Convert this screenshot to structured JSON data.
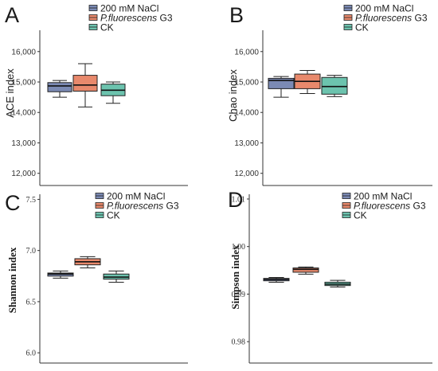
{
  "colors": {
    "nacl": "#7b8ab4",
    "g3": "#e8896c",
    "ck": "#6cc3ae"
  },
  "legend": {
    "nacl": "200 mM NaCl",
    "g3_italic": "P.fluorescens",
    "g3_rest": " G3",
    "ck": "CK"
  },
  "chart_data": [
    {
      "panel": "A",
      "type": "box",
      "ylabel": "ACE index",
      "ylim": [
        11600,
        16700
      ],
      "yticks": [
        12000,
        13000,
        14000,
        15000,
        16000
      ],
      "ytick_labels": [
        "12,000",
        "13,000",
        "14,000",
        "15,000",
        "16,000"
      ],
      "series": [
        {
          "name": "200 mM NaCl",
          "min": 14500,
          "q1": 14680,
          "median": 14870,
          "q3": 14980,
          "max": 15050
        },
        {
          "name": "P.fluorescens G3",
          "min": 14180,
          "q1": 14700,
          "median": 14900,
          "q3": 15220,
          "max": 15600
        },
        {
          "name": "CK",
          "min": 14300,
          "q1": 14550,
          "median": 14730,
          "q3": 14930,
          "max": 15000
        }
      ]
    },
    {
      "panel": "B",
      "type": "box",
      "ylabel": "Chao index",
      "ylim": [
        11600,
        16700
      ],
      "yticks": [
        12000,
        13000,
        14000,
        15000,
        16000
      ],
      "ytick_labels": [
        "12,000",
        "13,000",
        "14,000",
        "15,000",
        "16,000"
      ],
      "series": [
        {
          "name": "200 mM NaCl",
          "min": 14500,
          "q1": 14780,
          "median": 15050,
          "q3": 15120,
          "max": 15180
        },
        {
          "name": "P.fluorescens G3",
          "min": 14620,
          "q1": 14780,
          "median": 15020,
          "q3": 15260,
          "max": 15380
        },
        {
          "name": "CK",
          "min": 14520,
          "q1": 14600,
          "median": 14850,
          "q3": 15150,
          "max": 15220
        }
      ]
    },
    {
      "panel": "C",
      "type": "box",
      "ylabel": "Shannon index",
      "ylim": [
        5.9,
        7.55
      ],
      "yticks": [
        6.0,
        6.5,
        7.0,
        7.5
      ],
      "ytick_labels": [
        "6.0",
        "6.5",
        "7.0",
        "7.5"
      ],
      "series": [
        {
          "name": "200 mM NaCl",
          "min": 6.73,
          "q1": 6.75,
          "median": 6.77,
          "q3": 6.78,
          "max": 6.8
        },
        {
          "name": "P.fluorescens G3",
          "min": 6.83,
          "q1": 6.86,
          "median": 6.89,
          "q3": 6.92,
          "max": 6.94
        },
        {
          "name": "CK",
          "min": 6.69,
          "q1": 6.72,
          "median": 6.74,
          "q3": 6.77,
          "max": 6.8
        }
      ]
    },
    {
      "panel": "D",
      "type": "box",
      "ylabel": "Simpson index",
      "ylim": [
        0.9755,
        1.011
      ],
      "yticks": [
        0.98,
        0.99,
        1.0,
        1.01
      ],
      "ytick_labels": [
        "0.98",
        "0.99",
        "1.00",
        "1.01"
      ],
      "series": [
        {
          "name": "200 mM NaCl",
          "min": 0.9925,
          "q1": 0.9928,
          "median": 0.9931,
          "q3": 0.9933,
          "max": 0.9935
        },
        {
          "name": "P.fluorescens G3",
          "min": 0.9942,
          "q1": 0.9946,
          "median": 0.9952,
          "q3": 0.9955,
          "max": 0.9957
        },
        {
          "name": "CK",
          "min": 0.9915,
          "q1": 0.9918,
          "median": 0.9921,
          "q3": 0.9925,
          "max": 0.9929
        }
      ]
    }
  ]
}
